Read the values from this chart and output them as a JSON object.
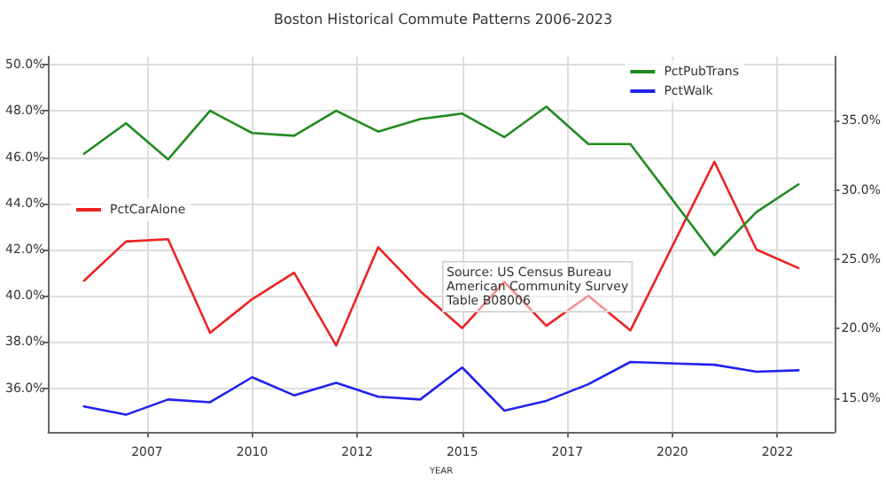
{
  "chart_data": {
    "type": "line",
    "title": "Boston Historical Commute Patterns 2006-2023",
    "xlabel": "YEAR",
    "x": [
      2006,
      2007,
      2008,
      2009,
      2010,
      2011,
      2012,
      2013,
      2014,
      2015,
      2016,
      2017,
      2018,
      2019,
      2021,
      2022,
      2023
    ],
    "series": [
      {
        "name": "PctCarAlone",
        "color": "#ee2222",
        "values": [
          40.65,
          42.35,
          42.45,
          38.4,
          39.85,
          41.0,
          37.85,
          42.1,
          40.2,
          38.6,
          40.6,
          38.7,
          40.0,
          38.5,
          45.8,
          42.0,
          41.2
        ]
      },
      {
        "name": "PctPubTrans",
        "color": "#228b22",
        "axis": "y2",
        "values": [
          32.6,
          34.8,
          32.2,
          35.7,
          34.1,
          33.9,
          35.7,
          34.2,
          35.1,
          35.5,
          33.8,
          36.0,
          33.3,
          33.3,
          25.3,
          28.4,
          30.4
        ]
      },
      {
        "name": "PctWalk",
        "color": "#2222ee",
        "axis": "y2",
        "values": [
          14.4,
          13.8,
          14.9,
          14.7,
          16.5,
          15.2,
          16.1,
          15.1,
          14.9,
          17.2,
          14.1,
          14.8,
          16.0,
          17.6,
          17.4,
          16.9,
          17.0
        ]
      }
    ],
    "xlim": [
      2005.15,
      2023.85
    ],
    "xticks": [
      {
        "value": 2007.5,
        "label": "2007"
      },
      {
        "value": 2010,
        "label": "2010"
      },
      {
        "value": 2012.5,
        "label": "2012"
      },
      {
        "value": 2015,
        "label": "2015"
      },
      {
        "value": 2017.5,
        "label": "2017"
      },
      {
        "value": 2020,
        "label": "2020"
      },
      {
        "value": 2022.5,
        "label": "2022"
      }
    ],
    "ylim": [
      34.1,
      50.35
    ],
    "yticks": [
      {
        "value": 36,
        "label": "36.0%"
      },
      {
        "value": 38,
        "label": "38.0%"
      },
      {
        "value": 40,
        "label": "40.0%"
      },
      {
        "value": 42,
        "label": "42.0%"
      },
      {
        "value": 44,
        "label": "44.0%"
      },
      {
        "value": 46,
        "label": "46.0%"
      },
      {
        "value": 48,
        "label": "48.0%"
      },
      {
        "value": 50,
        "label": "50.0%"
      }
    ],
    "y2lim": [
      12.55,
      39.6
    ],
    "y2ticks": [
      {
        "value": 15,
        "label": "15.0%"
      },
      {
        "value": 20,
        "label": "20.0%"
      },
      {
        "value": 25,
        "label": "25.0%"
      },
      {
        "value": 30,
        "label": "30.0%"
      },
      {
        "value": 35,
        "label": "35.0%"
      }
    ],
    "annotations": [
      "Source: US Census Bureau\nAmerican Community Survey\nTable B08006"
    ],
    "grid": true,
    "legend": "top right",
    "line_style": "solid",
    "marker": "none"
  }
}
